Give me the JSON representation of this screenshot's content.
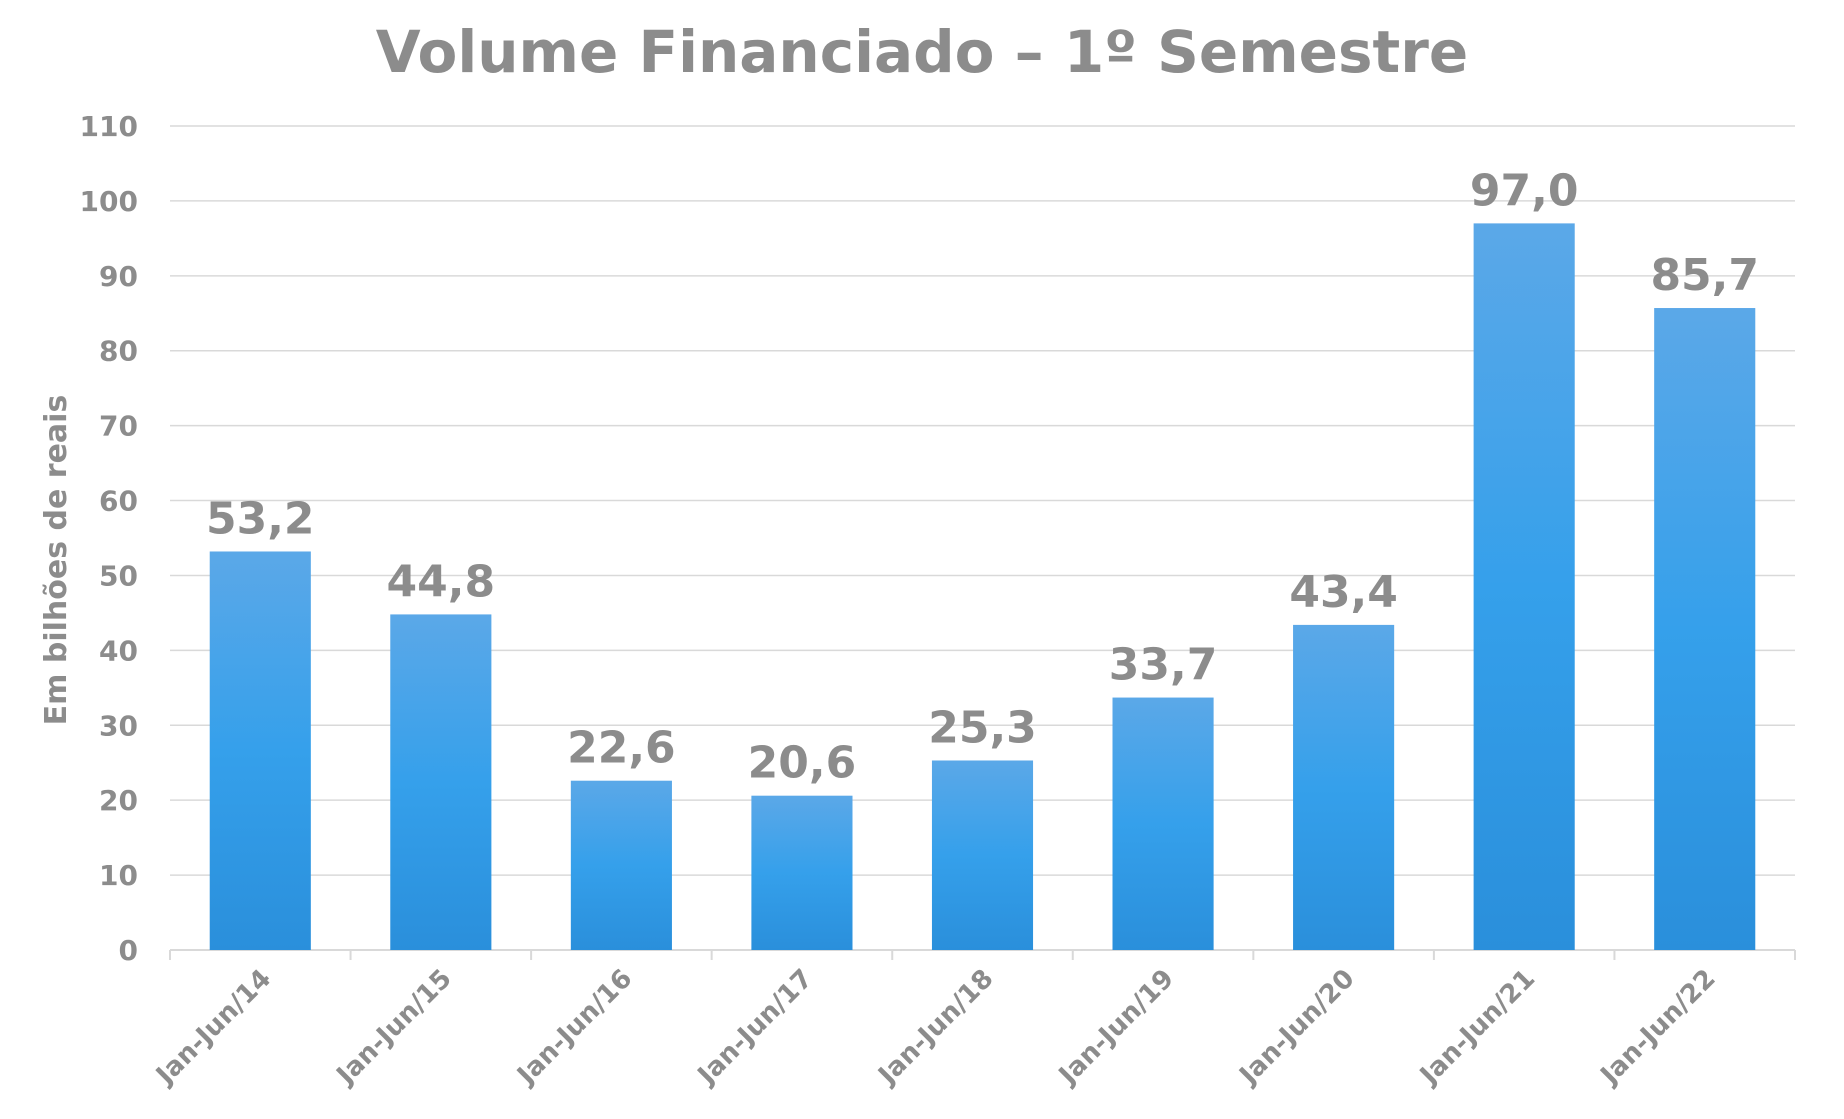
{
  "chart_data": {
    "type": "bar",
    "title": "Volume Financiado – 1º Semestre",
    "ylabel": "Em bilhões de reais",
    "xlabel": "",
    "categories": [
      "Jan-Jun/14",
      "Jan-Jun/15",
      "Jan-Jun/16",
      "Jan-Jun/17",
      "Jan-Jun/18",
      "Jan-Jun/19",
      "Jan-Jun/20",
      "Jan-Jun/21",
      "Jan-Jun/22"
    ],
    "values": [
      53.2,
      44.8,
      22.6,
      20.6,
      25.3,
      33.7,
      43.4,
      97.0,
      85.7
    ],
    "value_labels": [
      "53,2",
      "44,8",
      "22,6",
      "20,6",
      "25,3",
      "33,7",
      "43,4",
      "97,0",
      "85,7"
    ],
    "ylim": [
      0,
      110
    ],
    "yticks": [
      0,
      10,
      20,
      30,
      40,
      50,
      60,
      70,
      80,
      90,
      100,
      110
    ],
    "grid": true,
    "legend": "none",
    "colors": {
      "bar_top": "#5ba8e8",
      "bar_mid": "#35a0eb",
      "bar_bottom": "#2a8fdb",
      "text": "#8c8c8c",
      "grid": "#d9d9d9"
    }
  }
}
